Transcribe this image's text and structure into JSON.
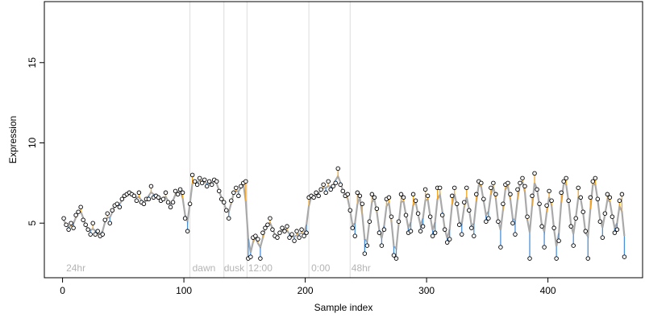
{
  "chart_data": {
    "type": "line",
    "title": "",
    "xlabel": "Sample index",
    "ylabel": "Expression",
    "xlim": [
      -15,
      478
    ],
    "ylim": [
      1.6,
      18.8
    ],
    "x_ticks": [
      0,
      100,
      200,
      300,
      400
    ],
    "y_ticks": [
      5,
      10,
      15
    ],
    "grid": false,
    "legend": "none",
    "colors": {
      "fit_line": "#a9a9a9",
      "residual_up": "#f5a623",
      "residual_down": "#4a90d9",
      "point_fill": "#ffffff",
      "point_stroke": "#000000",
      "divider": "#dcdcdc",
      "region_label": "#b4b4b4"
    },
    "dividers": [
      105,
      133,
      152,
      203,
      237
    ],
    "region_labels": [
      {
        "x": 3,
        "text": "24hr"
      },
      {
        "x": 107,
        "text": "dawn"
      },
      {
        "x": 133,
        "text": "dusk"
      },
      {
        "x": 153,
        "text": "12:00"
      },
      {
        "x": 205,
        "text": "0:00"
      },
      {
        "x": 238,
        "text": "48hr"
      }
    ],
    "series": [
      {
        "values": [
          [
            1,
            5.3
          ],
          [
            3,
            4.9
          ],
          [
            5,
            4.6
          ],
          [
            7,
            5.0
          ],
          [
            9,
            4.7
          ],
          [
            11,
            5.5
          ],
          [
            13,
            5.7
          ],
          [
            15,
            6.0
          ],
          [
            17,
            5.2
          ],
          [
            19,
            4.9
          ],
          [
            21,
            4.6
          ],
          [
            23,
            4.3
          ],
          [
            25,
            5.0
          ],
          [
            27,
            4.3
          ],
          [
            29,
            4.5
          ],
          [
            31,
            4.2
          ],
          [
            33,
            4.3
          ],
          [
            35,
            5.2
          ],
          [
            37,
            5.6
          ],
          [
            39,
            5.0
          ],
          [
            41,
            5.8
          ],
          [
            43,
            6.1
          ],
          [
            45,
            6.2
          ],
          [
            47,
            6.0
          ],
          [
            49,
            6.5
          ],
          [
            51,
            6.7
          ],
          [
            53,
            6.8
          ],
          [
            55,
            6.9
          ],
          [
            57,
            6.8
          ],
          [
            59,
            6.7
          ],
          [
            61,
            6.4
          ],
          [
            63,
            6.9
          ],
          [
            65,
            6.3
          ],
          [
            67,
            6.2
          ],
          [
            69,
            6.5
          ],
          [
            71,
            6.5
          ],
          [
            73,
            7.3
          ],
          [
            75,
            6.6
          ],
          [
            77,
            6.7
          ],
          [
            79,
            6.6
          ],
          [
            81,
            6.4
          ],
          [
            83,
            6.5
          ],
          [
            85,
            6.9
          ],
          [
            87,
            6.3
          ],
          [
            89,
            6.0
          ],
          [
            91,
            6.3
          ],
          [
            93,
            7.0
          ],
          [
            95,
            6.8
          ],
          [
            97,
            7.1
          ],
          [
            99,
            6.9
          ],
          [
            101,
            5.3
          ],
          [
            103,
            4.5
          ],
          [
            105,
            6.2
          ],
          [
            107,
            8.0
          ],
          [
            109,
            7.6
          ],
          [
            111,
            7.4
          ],
          [
            113,
            7.8
          ],
          [
            115,
            7.5
          ],
          [
            117,
            7.7
          ],
          [
            119,
            7.3
          ],
          [
            121,
            7.6
          ],
          [
            123,
            7.4
          ],
          [
            125,
            7.7
          ],
          [
            127,
            7.6
          ],
          [
            129,
            7.0
          ],
          [
            131,
            6.5
          ],
          [
            133,
            6.3
          ],
          [
            135,
            5.8
          ],
          [
            137,
            5.3
          ],
          [
            139,
            6.4
          ],
          [
            141,
            6.9
          ],
          [
            143,
            7.2
          ],
          [
            145,
            6.7
          ],
          [
            147,
            7.3
          ],
          [
            149,
            7.5
          ],
          [
            151,
            7.6
          ],
          [
            153,
            2.8
          ],
          [
            155,
            2.9
          ],
          [
            157,
            4.1
          ],
          [
            159,
            4.2
          ],
          [
            161,
            4.0
          ],
          [
            163,
            2.8
          ],
          [
            165,
            4.4
          ],
          [
            167,
            4.7
          ],
          [
            169,
            4.9
          ],
          [
            171,
            5.3
          ],
          [
            173,
            4.6
          ],
          [
            175,
            4.2
          ],
          [
            177,
            4.1
          ],
          [
            179,
            4.4
          ],
          [
            181,
            4.7
          ],
          [
            183,
            4.5
          ],
          [
            185,
            4.8
          ],
          [
            187,
            4.1
          ],
          [
            189,
            4.3
          ],
          [
            191,
            3.9
          ],
          [
            193,
            4.5
          ],
          [
            195,
            4.1
          ],
          [
            197,
            4.6
          ],
          [
            199,
            4.2
          ],
          [
            201,
            4.4
          ],
          [
            203,
            6.6
          ],
          [
            205,
            6.7
          ],
          [
            207,
            6.6
          ],
          [
            209,
            6.9
          ],
          [
            211,
            6.7
          ],
          [
            213,
            7.1
          ],
          [
            215,
            7.4
          ],
          [
            217,
            6.9
          ],
          [
            219,
            7.6
          ],
          [
            221,
            7.1
          ],
          [
            223,
            7.3
          ],
          [
            225,
            7.5
          ],
          [
            227,
            8.4
          ],
          [
            229,
            7.4
          ],
          [
            231,
            7.0
          ],
          [
            233,
            6.7
          ],
          [
            235,
            6.8
          ],
          [
            237,
            5.8
          ],
          [
            239,
            4.7
          ],
          [
            241,
            4.2
          ],
          [
            243,
            6.9
          ],
          [
            245,
            6.7
          ],
          [
            247,
            6.2
          ],
          [
            249,
            3.1
          ],
          [
            251,
            3.6
          ],
          [
            253,
            5.1
          ],
          [
            255,
            6.8
          ],
          [
            257,
            6.6
          ],
          [
            259,
            5.9
          ],
          [
            261,
            4.4
          ],
          [
            263,
            3.6
          ],
          [
            265,
            4.6
          ],
          [
            267,
            6.5
          ],
          [
            269,
            6.6
          ],
          [
            271,
            5.4
          ],
          [
            273,
            3.0
          ],
          [
            275,
            2.8
          ],
          [
            277,
            5.1
          ],
          [
            279,
            6.8
          ],
          [
            281,
            6.6
          ],
          [
            283,
            5.5
          ],
          [
            285,
            4.4
          ],
          [
            287,
            4.5
          ],
          [
            289,
            6.8
          ],
          [
            291,
            6.4
          ],
          [
            293,
            5.6
          ],
          [
            295,
            4.5
          ],
          [
            297,
            4.8
          ],
          [
            299,
            7.1
          ],
          [
            301,
            6.7
          ],
          [
            303,
            5.4
          ],
          [
            305,
            4.2
          ],
          [
            307,
            4.4
          ],
          [
            309,
            7.2
          ],
          [
            311,
            7.2
          ],
          [
            313,
            5.5
          ],
          [
            315,
            4.6
          ],
          [
            317,
            3.8
          ],
          [
            319,
            4.0
          ],
          [
            321,
            6.7
          ],
          [
            323,
            7.2
          ],
          [
            325,
            6.2
          ],
          [
            327,
            4.9
          ],
          [
            329,
            4.3
          ],
          [
            331,
            6.3
          ],
          [
            333,
            7.2
          ],
          [
            335,
            5.8
          ],
          [
            337,
            4.7
          ],
          [
            339,
            4.2
          ],
          [
            341,
            6.8
          ],
          [
            343,
            7.6
          ],
          [
            345,
            7.5
          ],
          [
            347,
            6.5
          ],
          [
            349,
            5.1
          ],
          [
            351,
            5.3
          ],
          [
            353,
            7.2
          ],
          [
            355,
            7.5
          ],
          [
            357,
            6.8
          ],
          [
            359,
            5.1
          ],
          [
            361,
            3.5
          ],
          [
            363,
            6.2
          ],
          [
            365,
            7.4
          ],
          [
            367,
            7.5
          ],
          [
            369,
            6.8
          ],
          [
            371,
            5.0
          ],
          [
            373,
            4.3
          ],
          [
            375,
            7.1
          ],
          [
            377,
            7.5
          ],
          [
            379,
            7.8
          ],
          [
            381,
            7.3
          ],
          [
            383,
            5.4
          ],
          [
            385,
            2.8
          ],
          [
            387,
            6.7
          ],
          [
            389,
            8.1
          ],
          [
            391,
            7.1
          ],
          [
            393,
            6.2
          ],
          [
            395,
            4.8
          ],
          [
            397,
            3.5
          ],
          [
            399,
            6.1
          ],
          [
            401,
            7.0
          ],
          [
            403,
            6.4
          ],
          [
            405,
            4.7
          ],
          [
            407,
            2.8
          ],
          [
            409,
            3.9
          ],
          [
            411,
            6.9
          ],
          [
            413,
            7.6
          ],
          [
            415,
            7.8
          ],
          [
            417,
            6.4
          ],
          [
            419,
            4.8
          ],
          [
            421,
            3.6
          ],
          [
            423,
            5.3
          ],
          [
            425,
            7.2
          ],
          [
            427,
            6.6
          ],
          [
            429,
            5.7
          ],
          [
            431,
            4.5
          ],
          [
            433,
            2.8
          ],
          [
            435,
            6.6
          ],
          [
            437,
            7.6
          ],
          [
            439,
            7.8
          ],
          [
            441,
            6.5
          ],
          [
            443,
            5.1
          ],
          [
            445,
            4.1
          ],
          [
            447,
            5.6
          ],
          [
            449,
            6.8
          ],
          [
            451,
            6.6
          ],
          [
            453,
            5.4
          ],
          [
            455,
            4.4
          ],
          [
            457,
            4.6
          ],
          [
            459,
            6.4
          ],
          [
            461,
            6.8
          ],
          [
            463,
            2.9
          ]
        ]
      }
    ]
  }
}
